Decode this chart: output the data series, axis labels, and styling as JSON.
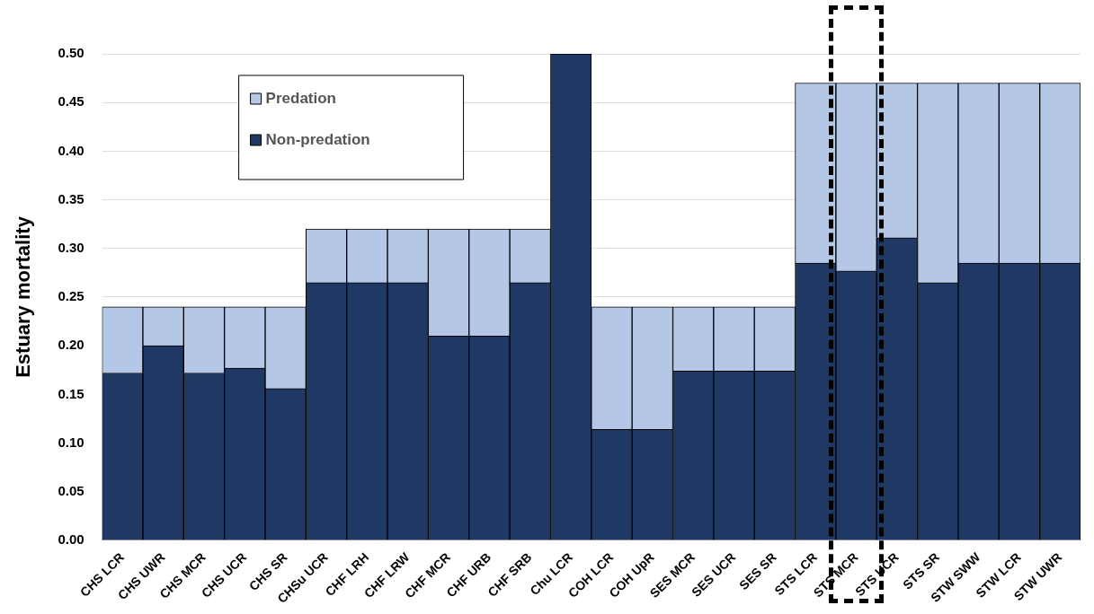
{
  "chart_data": {
    "type": "bar",
    "stacked": true,
    "ylabel": "Estuary mortality",
    "categories": [
      "CHS LCR",
      "CHS UWR",
      "CHS MCR",
      "CHS UCR",
      "CHS SR",
      "CHSu UCR",
      "CHF LRH",
      "CHF LRW",
      "CHF MCR",
      "CHF URB",
      "CHF SRB",
      "Chu LCR",
      "COH LCR",
      "COH UpR",
      "SES MCR",
      "SES UCR",
      "SES SR",
      "STS LCR",
      "STS MCR",
      "STS UCR",
      "STS SR",
      "STW SWW",
      "STW LCR",
      "STW UWR"
    ],
    "series": [
      {
        "name": "Non-predation",
        "color": "#203864",
        "values": [
          0.172,
          0.2,
          0.172,
          0.177,
          0.156,
          0.265,
          0.265,
          0.265,
          0.21,
          0.21,
          0.265,
          0.5,
          0.114,
          0.114,
          0.174,
          0.174,
          0.174,
          0.285,
          0.277,
          0.311,
          0.265,
          0.285,
          0.285,
          0.285
        ]
      },
      {
        "name": "Predation",
        "color": "#b4c7e7",
        "values": [
          0.068,
          0.04,
          0.068,
          0.063,
          0.084,
          0.055,
          0.055,
          0.055,
          0.11,
          0.11,
          0.055,
          0,
          0.126,
          0.126,
          0.066,
          0.066,
          0.066,
          0.185,
          0.193,
          0.159,
          0.205,
          0.185,
          0.185,
          0.185
        ]
      }
    ],
    "ylim": [
      0,
      0.5
    ],
    "yticks": [
      {
        "value": 0,
        "label": "0.00"
      },
      {
        "value": 0.05,
        "label": "0.05"
      },
      {
        "value": 0.1,
        "label": "0.10"
      },
      {
        "value": 0.15,
        "label": "0.15"
      },
      {
        "value": 0.2,
        "label": "0.20"
      },
      {
        "value": 0.25,
        "label": "0.25"
      },
      {
        "value": 0.3,
        "label": "0.30"
      },
      {
        "value": 0.35,
        "label": "0.35"
      },
      {
        "value": 0.4,
        "label": "0.40"
      },
      {
        "value": 0.45,
        "label": "0.45"
      },
      {
        "value": 0.5,
        "label": "0.50"
      }
    ],
    "grid": "y",
    "legend": "top left"
  }
}
